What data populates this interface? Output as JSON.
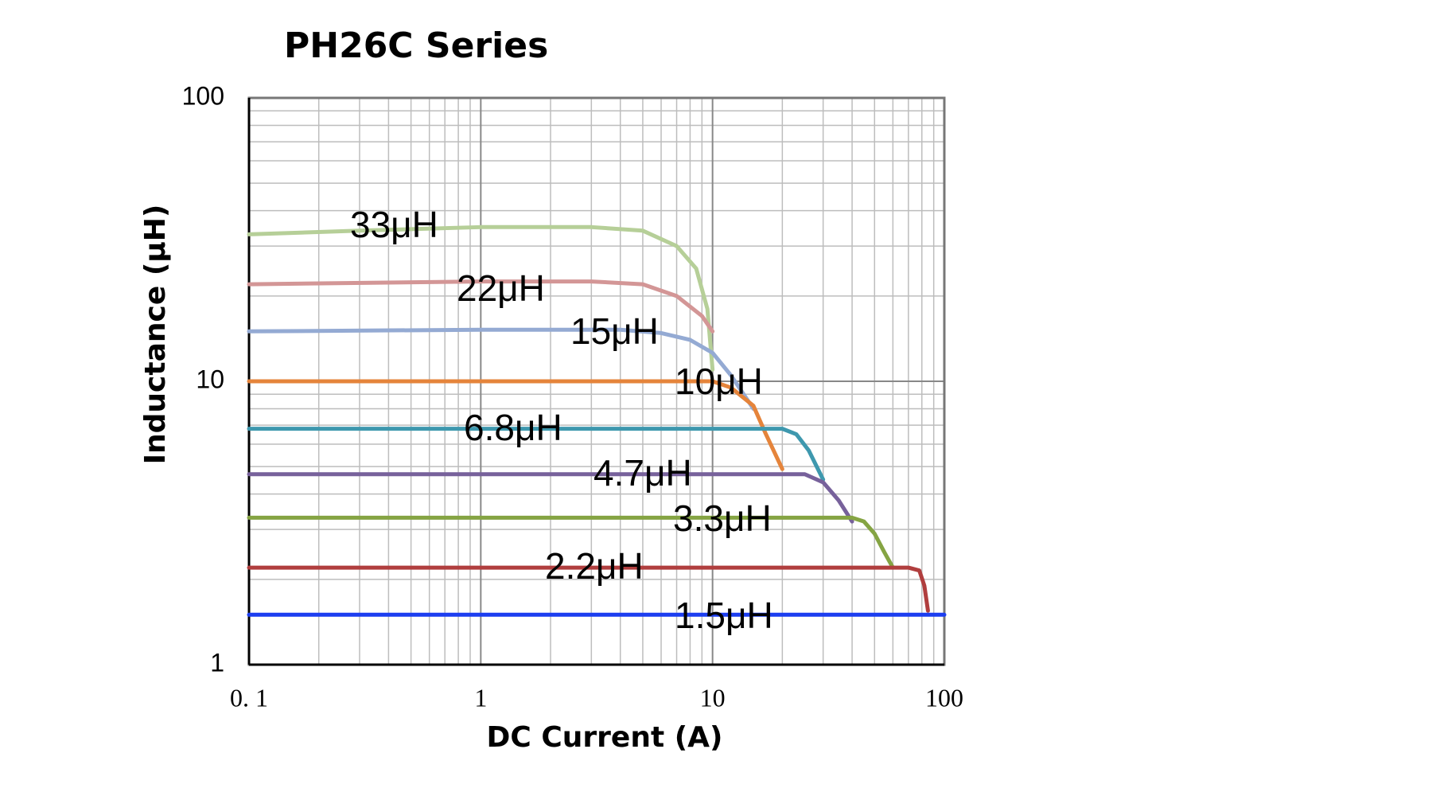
{
  "chart_data": {
    "type": "line",
    "title": "PH26C  Series",
    "x_label": "DC Current (A)",
    "y_label": "Inductance (μH)",
    "x_scale": "log",
    "y_scale": "log",
    "grid": true,
    "xlim": [
      0.1,
      100
    ],
    "ylim": [
      1,
      100
    ],
    "xticks": [
      {
        "value": 0.1,
        "label": "0. 1"
      },
      1,
      10,
      100
    ],
    "yticks": [
      1,
      10,
      100
    ],
    "series": [
      {
        "name": "33μH",
        "color": "#b6cf98",
        "x": [
          0.1,
          0.3,
          1,
          3,
          5,
          7,
          8.5,
          9.5,
          10
        ],
        "values": [
          33,
          34,
          35,
          35,
          34,
          30,
          25,
          18,
          11
        ]
      },
      {
        "name": "22μH",
        "color": "#d39696",
        "x": [
          0.1,
          1,
          3,
          5,
          7,
          9,
          10
        ],
        "values": [
          22,
          22.5,
          22.5,
          22,
          20,
          17,
          15
        ]
      },
      {
        "name": "15μH",
        "color": "#94aad3",
        "x": [
          0.1,
          1,
          4,
          6,
          8,
          10,
          12,
          15
        ],
        "values": [
          15,
          15.2,
          15.2,
          14.8,
          14,
          12.6,
          10.5,
          8
        ]
      },
      {
        "name": "10μH",
        "color": "#e5843b",
        "x": [
          0.1,
          1,
          7,
          10,
          12,
          15,
          17,
          20
        ],
        "values": [
          10,
          10,
          10,
          10,
          9.5,
          8.2,
          6.5,
          4.9
        ]
      },
      {
        "name": "6.8μH",
        "color": "#3e98ae",
        "x": [
          0.1,
          1,
          10,
          20,
          23,
          26,
          30
        ],
        "values": [
          6.8,
          6.8,
          6.8,
          6.8,
          6.5,
          5.7,
          4.5
        ]
      },
      {
        "name": "4.7μH",
        "color": "#77619b",
        "x": [
          0.1,
          1,
          10,
          25,
          30,
          35,
          40
        ],
        "values": [
          4.7,
          4.7,
          4.7,
          4.7,
          4.4,
          3.8,
          3.2
        ]
      },
      {
        "name": "3.3μH",
        "color": "#85a443",
        "x": [
          0.1,
          1,
          10,
          40,
          45,
          50,
          55,
          60
        ],
        "values": [
          3.3,
          3.3,
          3.3,
          3.3,
          3.2,
          2.9,
          2.5,
          2.2
        ]
      },
      {
        "name": "2.2μH",
        "color": "#b03e3e",
        "x": [
          0.1,
          1,
          10,
          70,
          78,
          82,
          85
        ],
        "values": [
          2.2,
          2.2,
          2.2,
          2.2,
          2.15,
          1.9,
          1.55
        ]
      },
      {
        "name": "1.5μH",
        "color": "#1c3ef0",
        "x": [
          0.1,
          100
        ],
        "values": [
          1.5,
          1.5
        ]
      }
    ]
  }
}
